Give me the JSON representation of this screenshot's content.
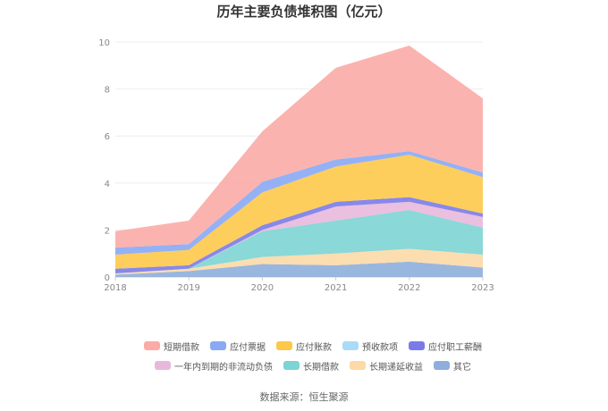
{
  "chart_data": {
    "type": "area",
    "title": "历年主要负债堆积图（亿元）",
    "categories": [
      "2018",
      "2019",
      "2020",
      "2021",
      "2022",
      "2023"
    ],
    "ylim": [
      0,
      10
    ],
    "yticks": [
      "0",
      "2",
      "4",
      "6",
      "8",
      "10"
    ],
    "stacked": true,
    "series": [
      {
        "name": "其它",
        "color": "#8eaedb",
        "values": [
          0.1,
          0.25,
          0.55,
          0.5,
          0.65,
          0.4
        ]
      },
      {
        "name": "长期递延收益",
        "color": "#fcd9a6",
        "values": [
          0.05,
          0.1,
          0.3,
          0.5,
          0.55,
          0.55
        ]
      },
      {
        "name": "长期借款",
        "color": "#7dd4d4",
        "values": [
          0.0,
          0.0,
          1.1,
          1.4,
          1.65,
          1.15
        ]
      },
      {
        "name": "一年内到期的非流动负债",
        "color": "#e8b8dc",
        "values": [
          0.0,
          0.0,
          0.05,
          0.6,
          0.35,
          0.45
        ]
      },
      {
        "name": "应付职工薪酬",
        "color": "#7b7be8",
        "values": [
          0.2,
          0.15,
          0.2,
          0.2,
          0.2,
          0.15
        ]
      },
      {
        "name": "预收款项",
        "color": "#a8dcf6",
        "values": [
          0.0,
          0.0,
          0.0,
          0.0,
          0.0,
          0.0
        ]
      },
      {
        "name": "应付账款",
        "color": "#fdc94a",
        "values": [
          0.6,
          0.65,
          1.4,
          1.5,
          1.8,
          1.55
        ]
      },
      {
        "name": "应付票据",
        "color": "#8aa8f4",
        "values": [
          0.3,
          0.25,
          0.45,
          0.3,
          0.15,
          0.2
        ]
      },
      {
        "name": "短期借款",
        "color": "#fbaba6",
        "values": [
          0.7,
          1.0,
          2.15,
          3.9,
          4.5,
          3.15
        ]
      }
    ],
    "legend_rows": [
      [
        "短期借款",
        "应付票据",
        "应付账款",
        "预收款项",
        "应付职工薪酬"
      ],
      [
        "一年内到期的非流动负债",
        "长期借款",
        "长期递延收益",
        "其它"
      ]
    ],
    "legend_position": "bottom",
    "grid": true
  },
  "source": "数据来源：恒生聚源"
}
